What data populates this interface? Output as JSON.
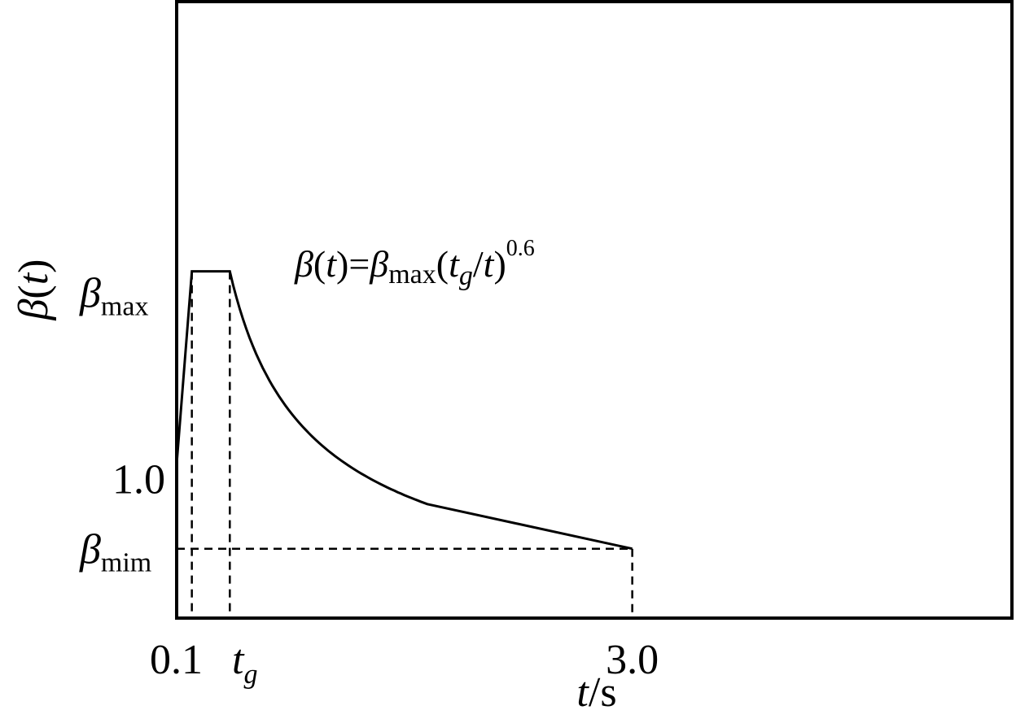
{
  "chart_data": {
    "type": "line",
    "title": "",
    "xlabel": {
      "var": "t",
      "unit": "/s"
    },
    "ylabel": {
      "symbol": "β",
      "open": "(",
      "var": "t",
      "close": ")"
    },
    "x_ticks": {
      "t_start": "0.1",
      "tg_var": "t",
      "tg_sub": "g",
      "t_end": "3.0"
    },
    "y_ticks": {
      "beta_max_symbol": "β",
      "beta_max_sub": "max",
      "one": "1.0",
      "beta_min_symbol": "β",
      "beta_min_sub": "mim"
    },
    "formula": {
      "lhs_symbol": "β",
      "lhs_open": "(",
      "lhs_var": "t",
      "lhs_close_eq": ")=",
      "rhs_symbol": "β",
      "rhs_sub": "max",
      "rhs_open": "(",
      "rhs_t": "t",
      "rhs_g": "g",
      "rhs_slash": "/",
      "rhs_t2": "t",
      "rhs_close": ")",
      "exponent": "0.6"
    },
    "decay_exponent": 0.6,
    "beta_max": 2.25,
    "beta_min": 0.45,
    "t_0": 0.0,
    "t_1": 0.1,
    "t_g": 0.35,
    "t_knee": 1.65,
    "beta_knee": 0.74,
    "t_end": 3.0,
    "beta_0": 1.0,
    "xlim": [
      0.0,
      5.5
    ],
    "ylim": [
      0.0,
      4.0
    ],
    "grid": false,
    "legend": "none"
  }
}
